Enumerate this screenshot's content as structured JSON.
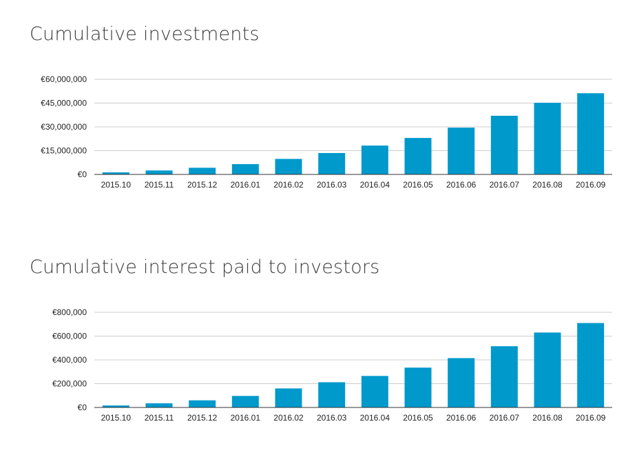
{
  "chart_data": [
    {
      "type": "bar",
      "title": "Cumulative investments",
      "xlabel": "",
      "ylabel": "",
      "categories": [
        "2015.10",
        "2015.11",
        "2015.12",
        "2016.01",
        "2016.02",
        "2016.03",
        "2016.04",
        "2016.05",
        "2016.06",
        "2016.07",
        "2016.08",
        "2016.09"
      ],
      "values": [
        1300000,
        2500000,
        4200000,
        6500000,
        9800000,
        13500000,
        18200000,
        23000000,
        29500000,
        37000000,
        45200000,
        51200000
      ],
      "ylim": [
        0,
        60000000
      ],
      "yticks": [
        0,
        15000000,
        30000000,
        45000000,
        60000000
      ],
      "ytick_labels": [
        "€0",
        "€15,000,000",
        "€30,000,000",
        "€45,000,000",
        "€60,000,000"
      ],
      "bar_color": "#0099cc",
      "grid": true,
      "legend": "none"
    },
    {
      "type": "bar",
      "title": "Cumulative interest paid to investors",
      "xlabel": "",
      "ylabel": "",
      "categories": [
        "2015.10",
        "2015.11",
        "2015.12",
        "2016.01",
        "2016.02",
        "2016.03",
        "2016.04",
        "2016.05",
        "2016.06",
        "2016.07",
        "2016.08",
        "2016.09"
      ],
      "values": [
        17000,
        35000,
        60000,
        97000,
        160000,
        212000,
        265000,
        335000,
        415000,
        515000,
        630000,
        710000
      ],
      "ylim": [
        0,
        800000
      ],
      "yticks": [
        0,
        200000,
        400000,
        600000,
        800000
      ],
      "ytick_labels": [
        "€0",
        "€200,000",
        "€400,000",
        "€600,000",
        "€800,000"
      ],
      "bar_color": "#0099cc",
      "grid": true,
      "legend": "none"
    }
  ]
}
